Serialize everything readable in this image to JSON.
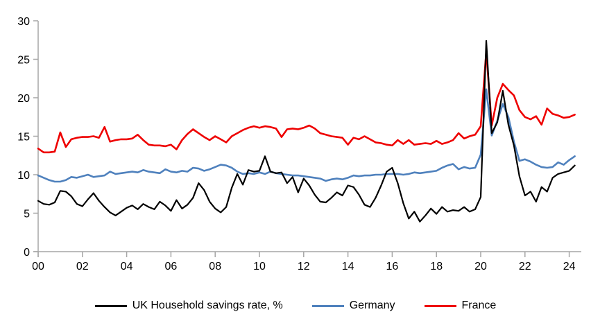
{
  "chart_data": {
    "type": "line",
    "x_start": 2000,
    "x_step": 0.25,
    "x_unit": "quarter",
    "title": "",
    "xlabel": "",
    "ylabel": "",
    "ylim": [
      0,
      30
    ],
    "yticks": [
      0,
      5,
      10,
      15,
      20,
      25,
      30
    ],
    "xticks": [
      2000,
      2002,
      2004,
      2006,
      2008,
      2010,
      2012,
      2014,
      2016,
      2018,
      2020,
      2022,
      2024
    ],
    "xtick_labels": [
      "00",
      "02",
      "04",
      "06",
      "08",
      "10",
      "12",
      "14",
      "16",
      "18",
      "20",
      "22",
      "24"
    ],
    "grid": false,
    "legend_position": "bottom-center",
    "axis_color": "#a6a6a6",
    "tick_label_color": "#000000",
    "series": [
      {
        "name": "Germany",
        "color": "#4f81bd",
        "width": 2.6,
        "values": [
          9.9,
          9.6,
          9.3,
          9.1,
          9.1,
          9.3,
          9.7,
          9.6,
          9.8,
          10.0,
          9.7,
          9.8,
          9.9,
          10.4,
          10.1,
          10.2,
          10.3,
          10.4,
          10.3,
          10.6,
          10.4,
          10.3,
          10.2,
          10.7,
          10.4,
          10.3,
          10.5,
          10.4,
          10.9,
          10.8,
          10.5,
          10.7,
          11.0,
          11.3,
          11.2,
          10.9,
          10.4,
          10.1,
          10.2,
          10.1,
          10.3,
          10.1,
          10.4,
          10.2,
          10.1,
          10.0,
          9.9,
          9.9,
          9.8,
          9.7,
          9.6,
          9.5,
          9.2,
          9.4,
          9.5,
          9.4,
          9.6,
          9.9,
          9.8,
          9.9,
          9.9,
          10.0,
          10.0,
          10.1,
          10.1,
          10.1,
          10.0,
          10.1,
          10.3,
          10.2,
          10.3,
          10.4,
          10.5,
          10.9,
          11.2,
          11.4,
          10.7,
          11.0,
          10.8,
          10.9,
          12.6,
          21.1,
          15.1,
          17.0,
          19.2,
          17.5,
          14.3,
          11.8,
          12.0,
          11.7,
          11.3,
          11.0,
          10.9,
          11.0,
          11.6,
          11.3,
          11.9,
          12.4
        ]
      },
      {
        "name": "France",
        "color": "#ee0000",
        "width": 2.6,
        "values": [
          13.4,
          12.9,
          12.9,
          13.0,
          15.5,
          13.6,
          14.6,
          14.8,
          14.9,
          14.9,
          15.0,
          14.8,
          16.2,
          14.3,
          14.5,
          14.6,
          14.6,
          14.7,
          15.2,
          14.5,
          13.9,
          13.8,
          13.8,
          13.7,
          13.9,
          13.3,
          14.5,
          15.3,
          15.9,
          15.4,
          14.9,
          14.5,
          15.0,
          14.6,
          14.2,
          15.0,
          15.4,
          15.8,
          16.1,
          16.3,
          16.1,
          16.3,
          16.2,
          16.0,
          14.9,
          15.9,
          16.0,
          15.9,
          16.1,
          16.4,
          16.0,
          15.4,
          15.2,
          15.0,
          14.9,
          14.8,
          13.9,
          14.8,
          14.6,
          15.0,
          14.6,
          14.2,
          14.1,
          13.9,
          13.8,
          14.5,
          14.0,
          14.5,
          13.9,
          14.0,
          14.1,
          14.0,
          14.4,
          14.0,
          14.2,
          14.5,
          15.4,
          14.7,
          15.0,
          15.2,
          16.3,
          26.0,
          16.4,
          20.0,
          21.8,
          21.0,
          20.3,
          18.4,
          17.5,
          17.2,
          17.6,
          16.5,
          18.6,
          17.9,
          17.7,
          17.4,
          17.5,
          17.8
        ]
      },
      {
        "name": "UK Household savings rate, %",
        "color": "#000000",
        "width": 2.2,
        "values": [
          6.6,
          6.2,
          6.1,
          6.4,
          7.9,
          7.8,
          7.2,
          6.2,
          5.9,
          6.8,
          7.6,
          6.6,
          5.8,
          5.1,
          4.7,
          5.2,
          5.7,
          6.0,
          5.5,
          6.2,
          5.8,
          5.5,
          6.5,
          6.0,
          5.3,
          6.7,
          5.6,
          6.1,
          7.0,
          8.9,
          8.0,
          6.5,
          5.6,
          5.1,
          5.8,
          8.3,
          10.1,
          8.7,
          10.6,
          10.4,
          10.5,
          12.4,
          10.4,
          10.2,
          10.3,
          8.9,
          9.7,
          7.7,
          9.5,
          8.6,
          7.4,
          6.5,
          6.4,
          7.0,
          7.7,
          7.3,
          8.6,
          8.4,
          7.4,
          6.1,
          5.8,
          7.0,
          8.6,
          10.4,
          10.9,
          8.9,
          6.3,
          4.3,
          5.2,
          3.9,
          4.7,
          5.6,
          4.9,
          5.8,
          5.2,
          5.4,
          5.3,
          5.8,
          5.2,
          5.5,
          7.1,
          27.4,
          15.4,
          16.8,
          20.9,
          16.5,
          13.8,
          9.8,
          7.3,
          7.8,
          6.5,
          8.4,
          7.8,
          9.6,
          10.1,
          10.3,
          10.5,
          11.2
        ]
      }
    ]
  },
  "legend": {
    "items": [
      {
        "label": "UK Household savings rate, %",
        "color": "#000000"
      },
      {
        "label": "Germany",
        "color": "#4f81bd"
      },
      {
        "label": "France",
        "color": "#ee0000"
      }
    ]
  }
}
